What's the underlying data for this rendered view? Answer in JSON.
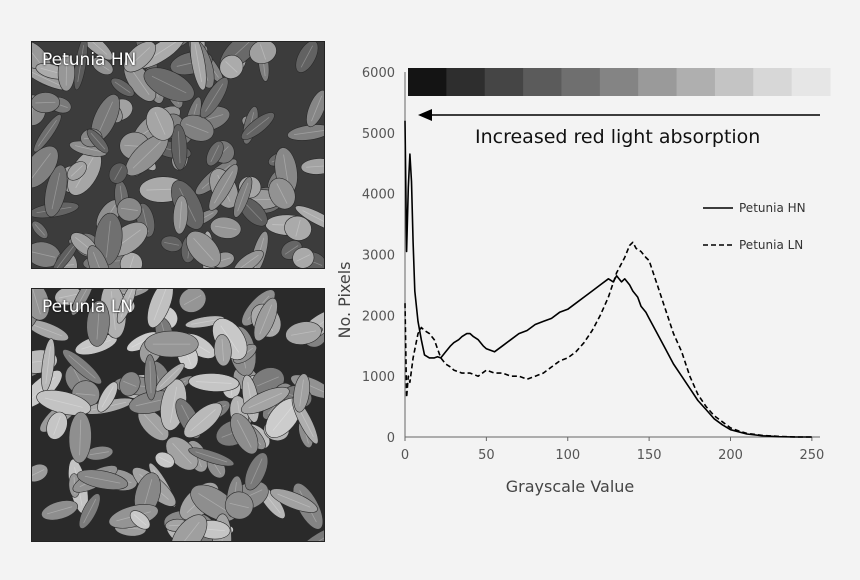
{
  "photos": {
    "top_label": "Petunia HN",
    "bottom_label": "Petunia LN"
  },
  "chart_data": {
    "type": "line",
    "xlabel": "Grayscale Value",
    "ylabel": "No. Pixels",
    "xlim": [
      0,
      255
    ],
    "ylim": [
      0,
      6000
    ],
    "xticks": [
      0,
      50,
      100,
      150,
      200,
      250
    ],
    "yticks": [
      0,
      1000,
      2000,
      3000,
      4000,
      5000,
      6000
    ],
    "annotation": "Increased red light absorption",
    "gradient_bar_shades": [
      "#141414",
      "#2e2e2e",
      "#454545",
      "#5b5b5b",
      "#6f6f6f",
      "#848484",
      "#9a9a9a",
      "#afafaf",
      "#c4c4c4",
      "#d7d7d7",
      "#e6e6e6"
    ],
    "series": [
      {
        "name": "Petunia HN",
        "style": "solid",
        "x": [
          0,
          1,
          2,
          3,
          4,
          5,
          6,
          8,
          10,
          12,
          15,
          18,
          20,
          22,
          25,
          28,
          30,
          33,
          35,
          38,
          40,
          42,
          45,
          48,
          50,
          55,
          60,
          65,
          70,
          75,
          80,
          85,
          90,
          95,
          100,
          105,
          110,
          115,
          120,
          125,
          128,
          130,
          133,
          135,
          138,
          140,
          143,
          145,
          148,
          150,
          155,
          160,
          165,
          170,
          175,
          180,
          185,
          190,
          195,
          200,
          210,
          220,
          230,
          240,
          250
        ],
        "y": [
          5200,
          3050,
          4100,
          4650,
          4200,
          3200,
          2400,
          1900,
          1600,
          1350,
          1300,
          1300,
          1320,
          1300,
          1400,
          1500,
          1550,
          1600,
          1650,
          1700,
          1700,
          1650,
          1600,
          1500,
          1450,
          1400,
          1500,
          1600,
          1700,
          1750,
          1850,
          1900,
          1950,
          2050,
          2100,
          2200,
          2300,
          2400,
          2500,
          2600,
          2550,
          2650,
          2550,
          2600,
          2500,
          2400,
          2300,
          2150,
          2050,
          1950,
          1700,
          1450,
          1200,
          1000,
          800,
          600,
          450,
          300,
          200,
          120,
          50,
          20,
          5,
          0,
          0
        ]
      },
      {
        "name": "Petunia LN",
        "style": "dashed",
        "x": [
          0,
          1,
          2,
          3,
          5,
          8,
          10,
          12,
          15,
          18,
          20,
          22,
          25,
          28,
          30,
          35,
          40,
          45,
          50,
          55,
          60,
          65,
          70,
          75,
          80,
          85,
          90,
          95,
          100,
          105,
          110,
          115,
          120,
          125,
          130,
          135,
          138,
          140,
          142,
          145,
          148,
          150,
          155,
          160,
          165,
          170,
          175,
          180,
          185,
          190,
          195,
          200,
          205,
          210,
          220,
          230,
          240,
          250
        ],
        "y": [
          2200,
          650,
          1000,
          900,
          1300,
          1700,
          1800,
          1750,
          1700,
          1600,
          1450,
          1300,
          1200,
          1150,
          1100,
          1050,
          1050,
          1000,
          1100,
          1050,
          1050,
          1000,
          1000,
          950,
          1000,
          1050,
          1150,
          1250,
          1300,
          1400,
          1550,
          1750,
          2000,
          2300,
          2700,
          2950,
          3150,
          3200,
          3100,
          3050,
          2950,
          2900,
          2500,
          2100,
          1700,
          1400,
          1000,
          700,
          500,
          350,
          250,
          150,
          100,
          60,
          25,
          10,
          0,
          0
        ]
      }
    ]
  }
}
